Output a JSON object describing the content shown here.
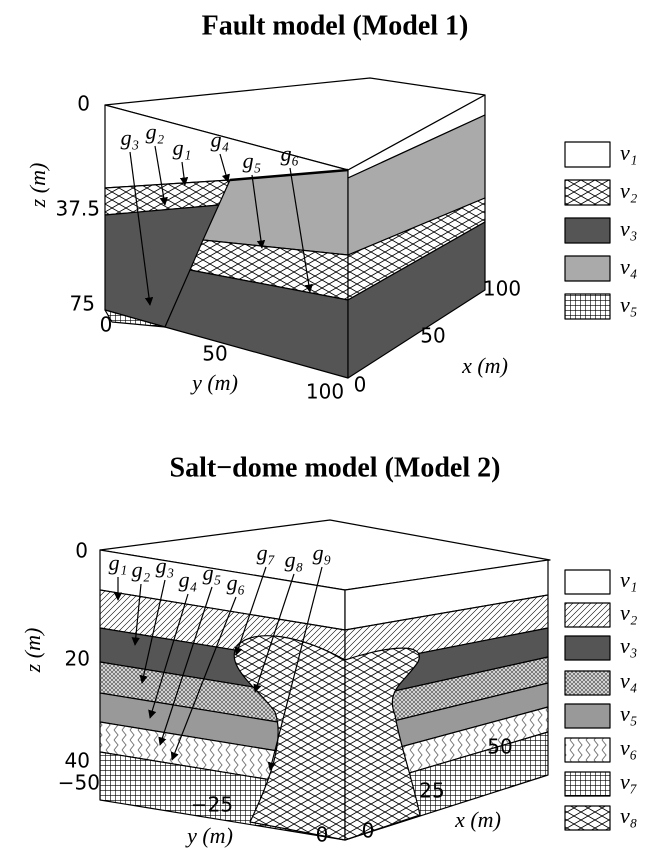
{
  "panels": [
    {
      "title": "Fault model (Model 1)",
      "axes": {
        "z_label": "z (m)",
        "y_label": "y (m)",
        "x_label": "x (m)",
        "z_ticks": [
          "0",
          "37.5",
          "75"
        ],
        "y_ticks": [
          "0",
          "50",
          "100"
        ],
        "x_ticks": [
          "0",
          "50",
          "100"
        ]
      },
      "layer_labels": [
        "g₃",
        "g₂",
        "g₁",
        "g₄",
        "g₅",
        "g₆"
      ],
      "legend": [
        "v₁",
        "v₂",
        "v₃",
        "v₄",
        "v₅"
      ]
    },
    {
      "title": "Salt−dome model (Model 2)",
      "axes": {
        "z_label": "z (m)",
        "y_label": "y (m)",
        "x_label": "x (m)",
        "z_ticks": [
          "0",
          "20",
          "40"
        ],
        "y_ticks": [
          "−50",
          "−25",
          "0"
        ],
        "x_ticks": [
          "0",
          "25",
          "50"
        ]
      },
      "layer_labels": [
        "g₁",
        "g₂",
        "g₃",
        "g₄",
        "g₅",
        "g₆",
        "g₇",
        "g₈",
        "g₉"
      ],
      "legend": [
        "v₁",
        "v₂",
        "v₃",
        "v₄",
        "v₅",
        "v₆",
        "v₇",
        "v₈"
      ]
    }
  ]
}
